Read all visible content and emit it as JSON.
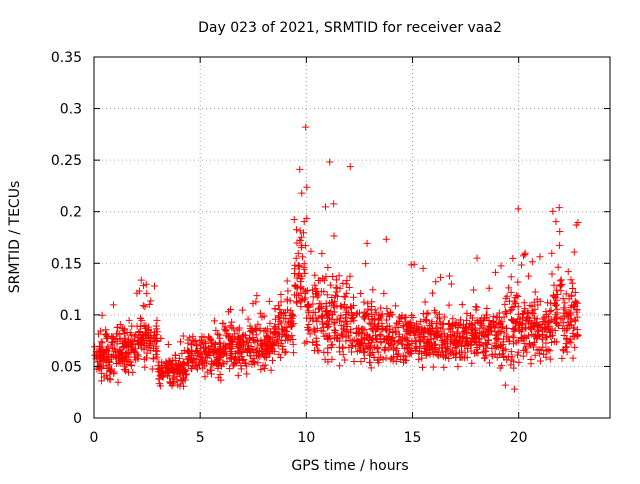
{
  "chart_data": {
    "type": "scatter",
    "title": "Day 023 of 2021, SRMTID for receiver vaa2",
    "xlabel": "GPS time / hours",
    "ylabel": "SRMTID / TECUs",
    "xlim": [
      0,
      24.3
    ],
    "ylim": [
      0,
      0.35
    ],
    "xticks": [
      0,
      5,
      10,
      15,
      20
    ],
    "yticks": [
      0,
      0.05,
      0.1,
      0.15,
      0.2,
      0.25,
      0.3,
      0.35
    ],
    "xtick_labels": [
      "0",
      "5",
      "10",
      "15",
      "20"
    ],
    "ytick_labels": [
      "0",
      "0.05",
      "0.1",
      "0.15",
      "0.2",
      "0.25",
      "0.3",
      "0.35"
    ],
    "grid": true,
    "marker": "+",
    "color": "#ff0000",
    "segments": [
      {
        "x0": 0.0,
        "x1": 0.9,
        "base": 0.06,
        "spread": 0.02,
        "lo": 0.025,
        "hi": 0.1
      },
      {
        "x0": 0.9,
        "x1": 2.0,
        "base": 0.065,
        "spread": 0.02,
        "lo": 0.03,
        "hi": 0.115
      },
      {
        "x0": 2.0,
        "x1": 3.0,
        "base": 0.075,
        "spread": 0.02,
        "lo": 0.035,
        "hi": 0.138
      },
      {
        "x0": 3.0,
        "x1": 4.4,
        "base": 0.045,
        "spread": 0.012,
        "lo": 0.022,
        "hi": 0.08
      },
      {
        "x0": 4.4,
        "x1": 6.0,
        "base": 0.06,
        "spread": 0.018,
        "lo": 0.015,
        "hi": 0.095
      },
      {
        "x0": 6.0,
        "x1": 8.5,
        "base": 0.07,
        "spread": 0.02,
        "lo": 0.03,
        "hi": 0.12
      },
      {
        "x0": 8.5,
        "x1": 9.4,
        "base": 0.09,
        "spread": 0.025,
        "lo": 0.04,
        "hi": 0.15
      },
      {
        "x0": 9.4,
        "x1": 10.0,
        "base": 0.14,
        "spread": 0.05,
        "lo": 0.06,
        "hi": 0.31
      },
      {
        "x0": 10.0,
        "x1": 11.0,
        "base": 0.1,
        "spread": 0.035,
        "lo": 0.04,
        "hi": 0.23
      },
      {
        "x0": 11.0,
        "x1": 12.3,
        "base": 0.095,
        "spread": 0.04,
        "lo": 0.015,
        "hi": 0.26
      },
      {
        "x0": 12.3,
        "x1": 15.0,
        "base": 0.08,
        "spread": 0.025,
        "lo": 0.025,
        "hi": 0.18
      },
      {
        "x0": 15.0,
        "x1": 17.5,
        "base": 0.075,
        "spread": 0.022,
        "lo": 0.025,
        "hi": 0.15
      },
      {
        "x0": 17.5,
        "x1": 19.3,
        "base": 0.08,
        "spread": 0.022,
        "lo": 0.03,
        "hi": 0.16
      },
      {
        "x0": 19.3,
        "x1": 20.0,
        "base": 0.09,
        "spread": 0.045,
        "lo": 0.018,
        "hi": 0.22
      },
      {
        "x0": 20.0,
        "x1": 21.5,
        "base": 0.085,
        "spread": 0.03,
        "lo": 0.035,
        "hi": 0.165
      },
      {
        "x0": 21.5,
        "x1": 22.8,
        "base": 0.1,
        "spread": 0.035,
        "lo": 0.035,
        "hi": 0.21
      }
    ]
  }
}
